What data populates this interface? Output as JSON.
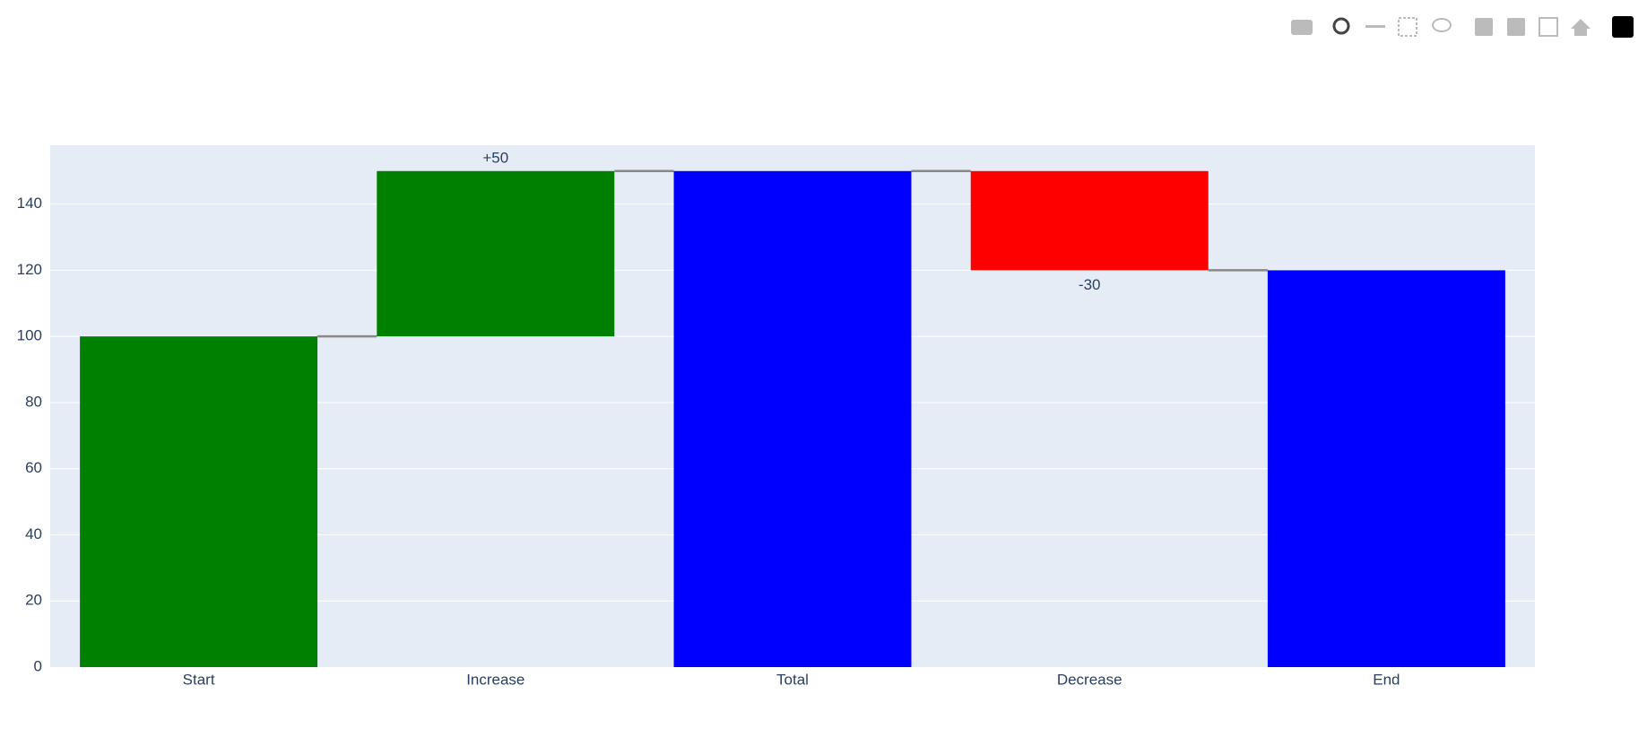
{
  "chart_data": {
    "type": "waterfall",
    "categories": [
      "Start",
      "Increase",
      "Total",
      "Decrease",
      "End"
    ],
    "measure": [
      "absolute",
      "relative",
      "total",
      "relative",
      "total"
    ],
    "values": [
      100,
      50,
      150,
      -30,
      120
    ],
    "value_labels": [
      null,
      "+50",
      null,
      "-30",
      null
    ],
    "colors": [
      "#008000",
      "#008000",
      "#0000ff",
      "#ff0000",
      "#0000ff"
    ],
    "connector_color": "#888888",
    "ylim": [
      0,
      157.8
    ],
    "yticks": [
      0,
      20,
      40,
      60,
      80,
      100,
      120,
      140
    ],
    "grid": true
  }
}
